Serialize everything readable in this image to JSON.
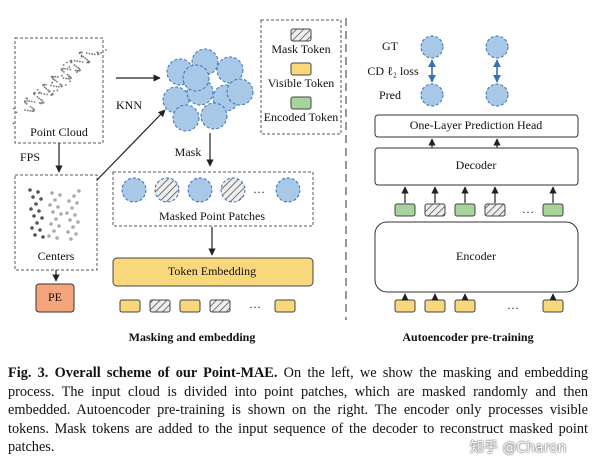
{
  "figure": {
    "left": {
      "point_cloud": "Point Cloud",
      "fps": "FPS",
      "centers": "Centers",
      "pe": "PE",
      "knn": "KNN",
      "mask": "Mask",
      "masked_patches": "Masked Point Patches",
      "token_embedding": "Token Embedding",
      "ellipsis": "…",
      "title": "Masking and embedding"
    },
    "legend": {
      "mask_token": "Mask Token",
      "visible_token": "Visible Token",
      "encoded_token": "Encoded Token"
    },
    "right": {
      "gt": "GT",
      "loss": "CD ℓ₂ loss",
      "pred": "Pred",
      "head": "One-Layer Prediction Head",
      "decoder": "Decoder",
      "encoder": "Encoder",
      "title": "Autoencoder pre-training"
    }
  },
  "caption": {
    "label": "Fig. 3. Overall scheme of our Point-MAE.",
    "text": "On the left, we show the masking and embedding process. The input cloud is divided into point patches, which are masked randomly and then embedded. Autoencoder pre-training is shown on the right. The encoder only processes visible tokens. Mask tokens are added to the input sequence of the decoder to reconstruct masked point patches."
  },
  "watermark": "知乎 @Charon"
}
